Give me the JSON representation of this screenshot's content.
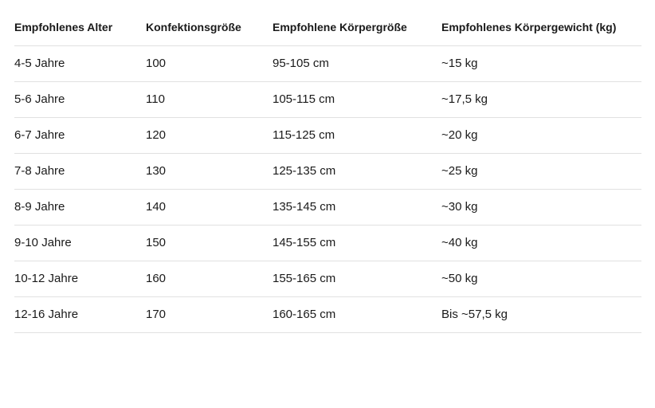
{
  "colors": {
    "text": "#1a1a1a",
    "row_divider": "#e1e1e1",
    "background": "#ffffff"
  },
  "table": {
    "headers": [
      "Empfohlenes Alter",
      "Konfektionsgröße",
      "Empfohlene Körpergröße",
      "Empfohlenes Körpergewicht (kg)"
    ],
    "rows": [
      [
        "4-5 Jahre",
        "100",
        "95-105 cm",
        "~15 kg"
      ],
      [
        "5-6 Jahre",
        "110",
        "105-115 cm",
        "~17,5 kg"
      ],
      [
        "6-7 Jahre",
        "120",
        "115-125 cm",
        "~20 kg"
      ],
      [
        "7-8 Jahre",
        "130",
        "125-135 cm",
        "~25 kg"
      ],
      [
        "8-9 Jahre",
        "140",
        "135-145 cm",
        "~30 kg"
      ],
      [
        "9-10 Jahre",
        "150",
        "145-155 cm",
        "~40 kg"
      ],
      [
        "10-12 Jahre",
        "160",
        "155-165 cm",
        "~50 kg"
      ],
      [
        "12-16 Jahre",
        "170",
        "160-165 cm",
        "Bis ~57,5 kg"
      ]
    ]
  },
  "chart_data": {
    "type": "table",
    "columns": [
      "Empfohlenes Alter",
      "Konfektionsgröße",
      "Empfohlene Körpergröße",
      "Empfohlenes Körpergewicht (kg)"
    ],
    "rows": [
      [
        "4-5 Jahre",
        "100",
        "95-105 cm",
        "~15 kg"
      ],
      [
        "5-6 Jahre",
        "110",
        "105-115 cm",
        "~17,5 kg"
      ],
      [
        "6-7 Jahre",
        "120",
        "115-125 cm",
        "~20 kg"
      ],
      [
        "7-8 Jahre",
        "130",
        "125-135 cm",
        "~25 kg"
      ],
      [
        "8-9 Jahre",
        "140",
        "135-145 cm",
        "~30 kg"
      ],
      [
        "9-10 Jahre",
        "150",
        "145-155 cm",
        "~40 kg"
      ],
      [
        "10-12 Jahre",
        "160",
        "155-165 cm",
        "~50 kg"
      ],
      [
        "12-16 Jahre",
        "170",
        "160-165 cm",
        "Bis ~57,5 kg"
      ]
    ],
    "konfektionsgroesse_values": [
      100,
      110,
      120,
      130,
      140,
      150,
      160,
      170
    ],
    "grid": "horizontal-dividers-only",
    "header_style": "bold"
  }
}
